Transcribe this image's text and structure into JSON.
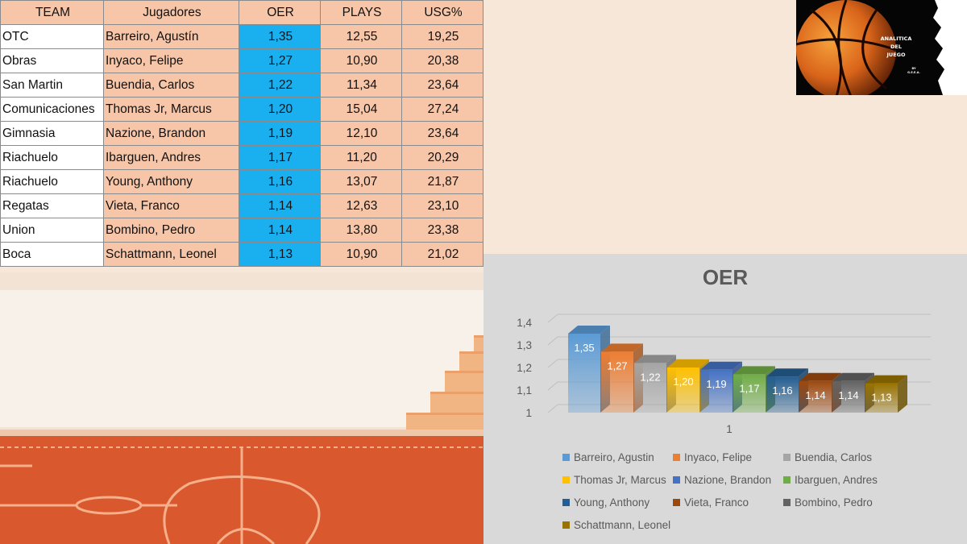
{
  "table": {
    "headers": [
      "TEAM",
      "Jugadores",
      "OER",
      "PLAYS",
      "USG%"
    ],
    "rows": [
      {
        "team": "OTC",
        "player": "Barreiro, Agustín",
        "oer": "1,35",
        "plays": "12,55",
        "usg": "19,25"
      },
      {
        "team": "Obras",
        "player": "Inyaco, Felipe",
        "oer": "1,27",
        "plays": "10,90",
        "usg": "20,38"
      },
      {
        "team": "San Martin",
        "player": "Buendia,  Carlos",
        "oer": "1,22",
        "plays": "11,34",
        "usg": "23,64"
      },
      {
        "team": "Comunicaciones",
        "player": "Thomas Jr, Marcus",
        "oer": "1,20",
        "plays": "15,04",
        "usg": "27,24"
      },
      {
        "team": "Gimnasia",
        "player": "Nazione, Brandon",
        "oer": "1,19",
        "plays": "12,10",
        "usg": "23,64"
      },
      {
        "team": "Riachuelo",
        "player": "Ibarguen,  Andres",
        "oer": "1,17",
        "plays": "11,20",
        "usg": "20,29"
      },
      {
        "team": "Riachuelo",
        "player": "Young,  Anthony",
        "oer": "1,16",
        "plays": "13,07",
        "usg": "21,87"
      },
      {
        "team": "Regatas",
        "player": "Vieta, Franco",
        "oer": "1,14",
        "plays": "12,63",
        "usg": "23,10"
      },
      {
        "team": "Union",
        "player": "Bombino, Pedro",
        "oer": "1,14",
        "plays": "13,80",
        "usg": "23,38"
      },
      {
        "team": "Boca",
        "player": "Schattmann, Leonel",
        "oer": "1,13",
        "plays": "10,90",
        "usg": "21,02"
      }
    ]
  },
  "logo": {
    "line1": "ANALITICA",
    "line2": "DEL",
    "line3": "JUEGO",
    "by": "BY",
    "credit": "G.E.E.A."
  },
  "chart_data": {
    "type": "bar",
    "title": "OER",
    "categories": [
      "1"
    ],
    "ylim": [
      1,
      1.4
    ],
    "yticks": [
      1,
      1.1,
      1.2,
      1.3,
      1.4
    ],
    "ytick_labels": [
      "1",
      "1,1",
      "1,2",
      "1,3",
      "1,4"
    ],
    "grid": true,
    "legend_position": "bottom",
    "data_labels": true,
    "series": [
      {
        "name": "Barreiro, Agustin",
        "values": [
          1.35
        ],
        "label": "1,35",
        "color": "#5b9bd5"
      },
      {
        "name": "Inyaco, Felipe",
        "values": [
          1.27
        ],
        "label": "1,27",
        "color": "#ed7d31"
      },
      {
        "name": "Buendia, Carlos",
        "values": [
          1.22
        ],
        "label": "1,22",
        "color": "#a5a5a5"
      },
      {
        "name": "Thomas Jr, Marcus",
        "values": [
          1.2
        ],
        "label": "1,20",
        "color": "#ffc000"
      },
      {
        "name": "Nazione, Brandon",
        "values": [
          1.19
        ],
        "label": "1,19",
        "color": "#4472c4"
      },
      {
        "name": "Ibarguen, Andres",
        "values": [
          1.17
        ],
        "label": "1,17",
        "color": "#70ad47"
      },
      {
        "name": "Young, Anthony",
        "values": [
          1.16
        ],
        "label": "1,16",
        "color": "#255e91"
      },
      {
        "name": "Vieta, Franco",
        "values": [
          1.14
        ],
        "label": "1,14",
        "color": "#9e480e"
      },
      {
        "name": "Bombino, Pedro",
        "values": [
          1.14
        ],
        "label": "1,14",
        "color": "#636363"
      },
      {
        "name": "Schattmann, Leonel",
        "values": [
          1.13
        ],
        "label": "1,13",
        "color": "#997300"
      }
    ]
  }
}
